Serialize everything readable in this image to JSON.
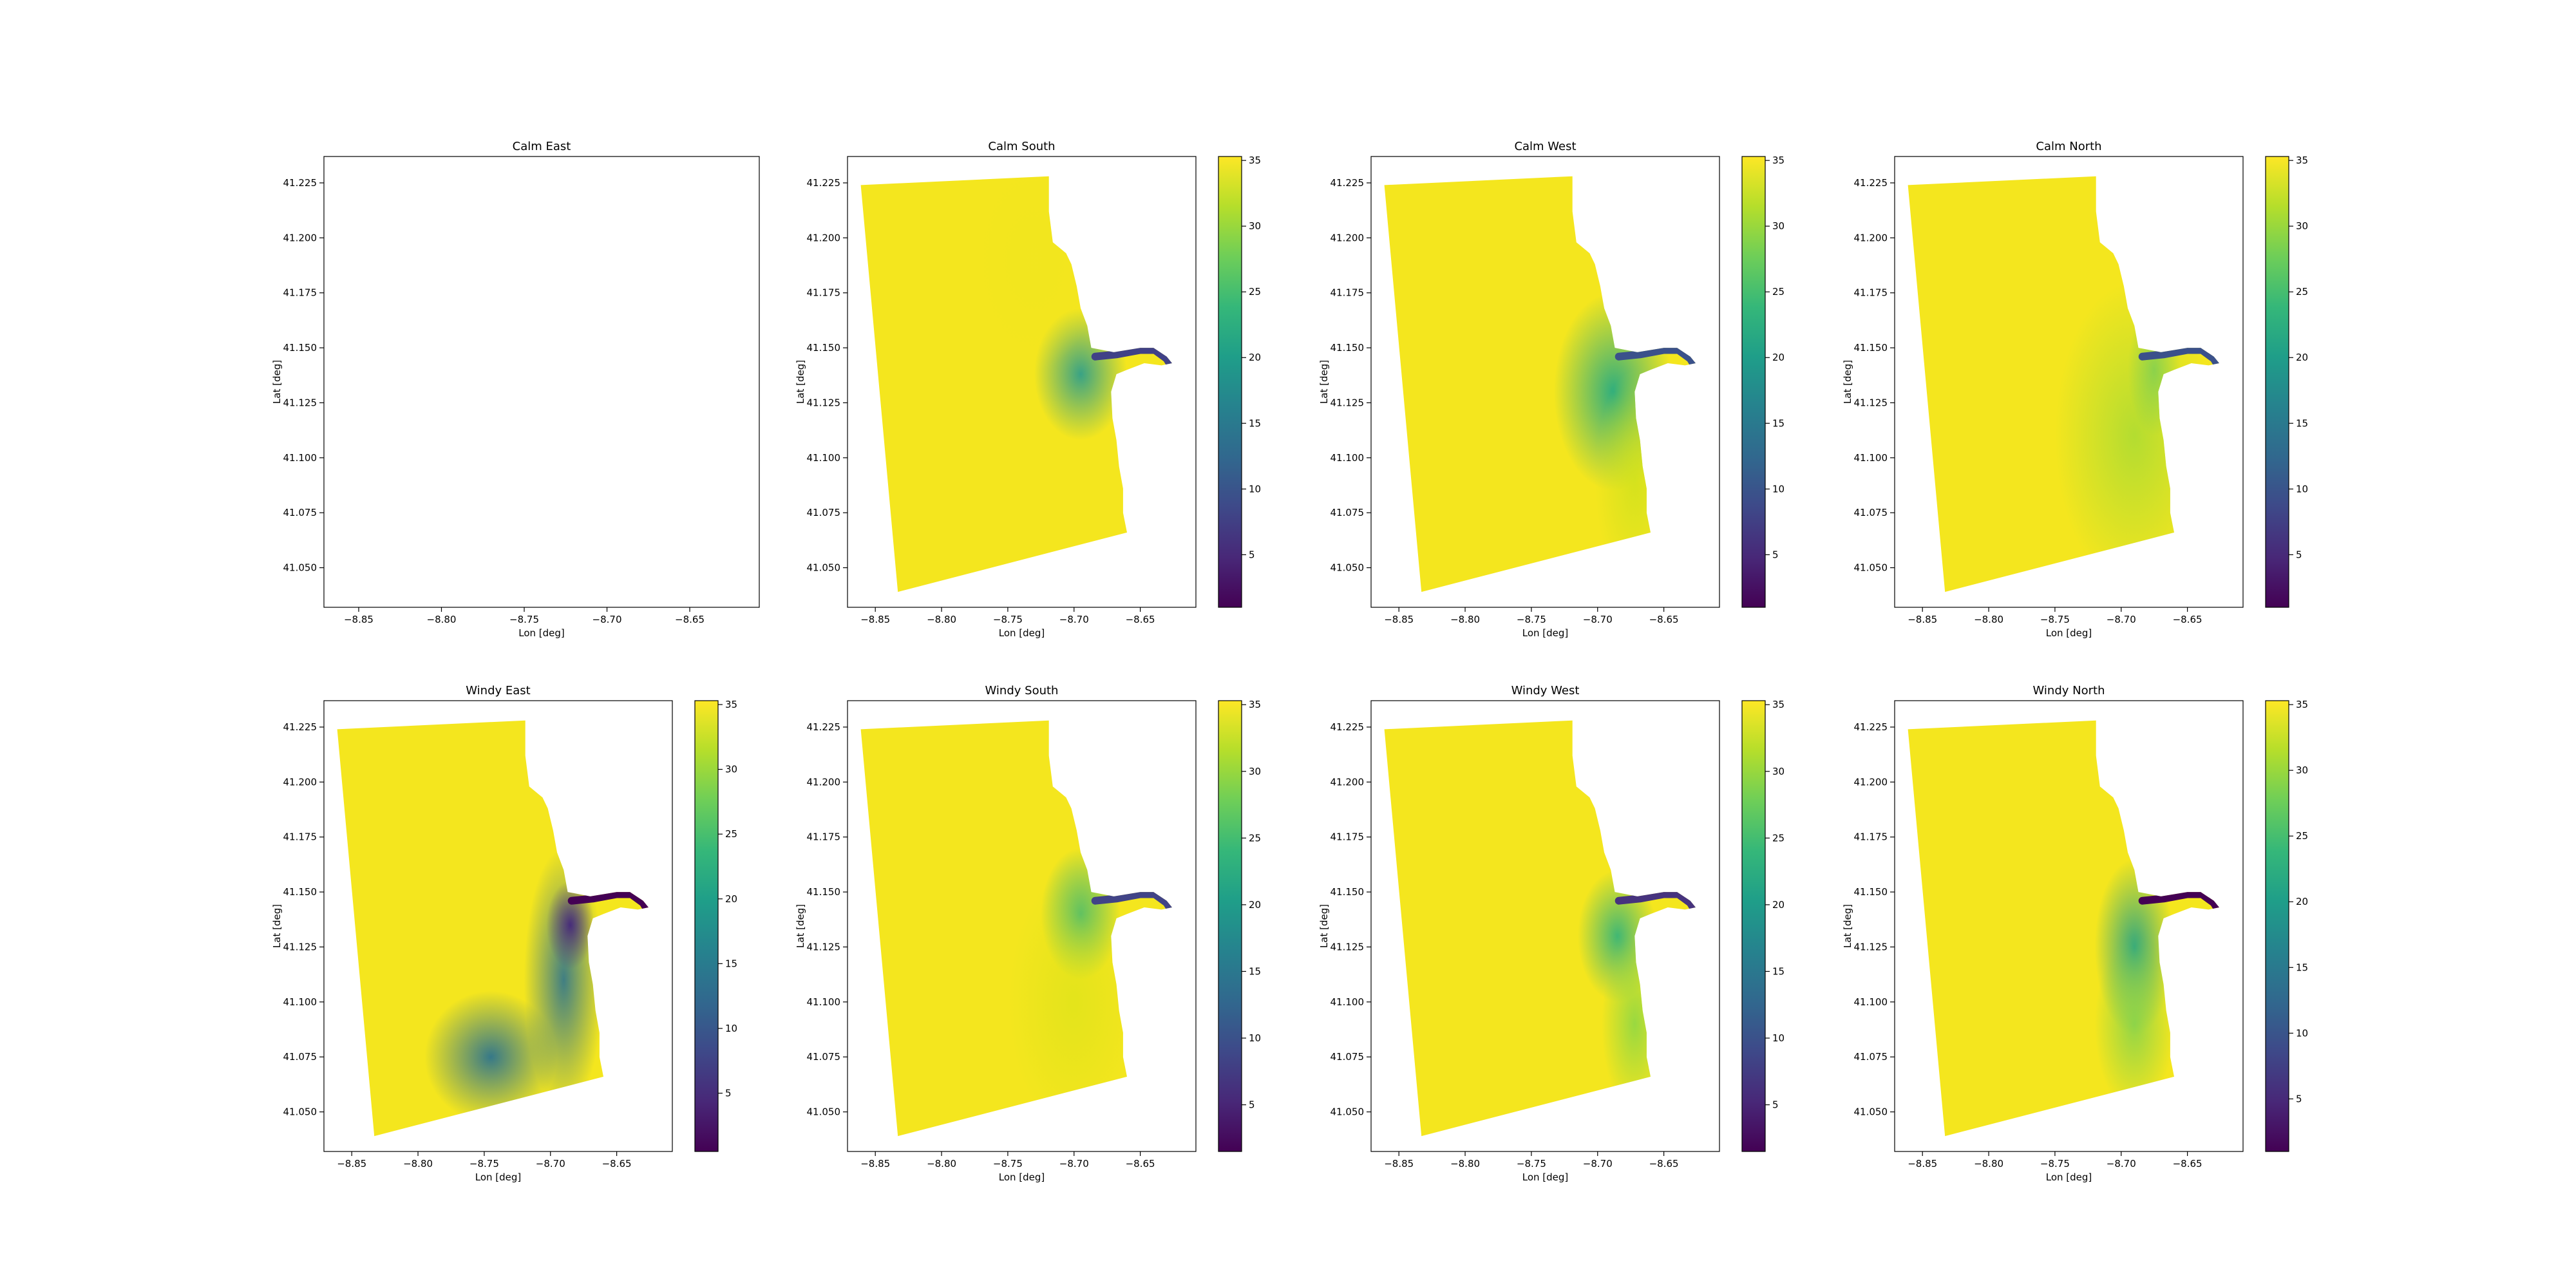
{
  "chart_data": [
    {
      "type": "heatmap",
      "title": "Calm East",
      "xlabel": "Lon [deg]",
      "ylabel": "Lat [deg]",
      "xlim": [
        -8.871,
        -8.608
      ],
      "ylim": [
        41.032,
        41.237
      ],
      "xticks": [
        "−8.85",
        "−8.80",
        "−8.75",
        "−8.70",
        "−8.65"
      ],
      "xtick_values": [
        -8.85,
        -8.8,
        -8.75,
        -8.7,
        -8.65
      ],
      "yticks": [
        "41.050",
        "41.075",
        "41.100",
        "41.125",
        "41.150",
        "41.175",
        "41.200",
        "41.225"
      ],
      "ytick_values": [
        41.05,
        41.075,
        41.1,
        41.125,
        41.15,
        41.175,
        41.2,
        41.225
      ],
      "colorbar": null,
      "field": "empty",
      "field_colors": {
        "offshore": "#f4e61e",
        "nearshore": "#f4e61e",
        "plume": "#f4e61e",
        "river": "#f4e61e"
      }
    },
    {
      "type": "heatmap",
      "title": "Calm South",
      "xlabel": "Lon [deg]",
      "ylabel": "Lat [deg]",
      "xlim": [
        -8.871,
        -8.608
      ],
      "ylim": [
        41.032,
        41.237
      ],
      "xticks": [
        "−8.85",
        "−8.80",
        "−8.75",
        "−8.70",
        "−8.65"
      ],
      "xtick_values": [
        -8.85,
        -8.8,
        -8.75,
        -8.7,
        -8.65
      ],
      "yticks": [
        "41.050",
        "41.075",
        "41.100",
        "41.125",
        "41.150",
        "41.175",
        "41.200",
        "41.225"
      ],
      "ytick_values": [
        41.05,
        41.075,
        41.1,
        41.125,
        41.15,
        41.175,
        41.2,
        41.225
      ],
      "colorbar": {
        "ticks": [
          "5",
          "10",
          "15",
          "20",
          "25",
          "30",
          "35"
        ],
        "tick_values": [
          5,
          10,
          15,
          20,
          25,
          30,
          35
        ],
        "range": [
          1,
          35.3
        ]
      },
      "field": "calm-south",
      "field_colors": {
        "offshore": "#f4e61e",
        "nearshore": "#f0e61f",
        "plume": "#2f9f8a",
        "river": "#404187"
      }
    },
    {
      "type": "heatmap",
      "title": "Calm West",
      "xlabel": "Lon [deg]",
      "ylabel": "Lat [deg]",
      "xlim": [
        -8.871,
        -8.608
      ],
      "ylim": [
        41.032,
        41.237
      ],
      "xticks": [
        "−8.85",
        "−8.80",
        "−8.75",
        "−8.70",
        "−8.65"
      ],
      "xtick_values": [
        -8.85,
        -8.8,
        -8.75,
        -8.7,
        -8.65
      ],
      "yticks": [
        "41.050",
        "41.075",
        "41.100",
        "41.125",
        "41.150",
        "41.175",
        "41.200",
        "41.225"
      ],
      "ytick_values": [
        41.05,
        41.075,
        41.1,
        41.125,
        41.15,
        41.175,
        41.2,
        41.225
      ],
      "colorbar": {
        "ticks": [
          "5",
          "10",
          "15",
          "20",
          "25",
          "30",
          "35"
        ],
        "tick_values": [
          5,
          10,
          15,
          20,
          25,
          30,
          35
        ],
        "range": [
          1,
          35.3
        ]
      },
      "field": "calm-west",
      "field_colors": {
        "offshore": "#f4e61e",
        "nearshore": "#cde11d",
        "plume": "#25ab82",
        "river": "#3b518b"
      }
    },
    {
      "type": "heatmap",
      "title": "Calm North",
      "xlabel": "Lon [deg]",
      "ylabel": "Lat [deg]",
      "xlim": [
        -8.871,
        -8.608
      ],
      "ylim": [
        41.032,
        41.237
      ],
      "xticks": [
        "−8.85",
        "−8.80",
        "−8.75",
        "−8.70",
        "−8.65"
      ],
      "xtick_values": [
        -8.85,
        -8.8,
        -8.75,
        -8.7,
        -8.65
      ],
      "yticks": [
        "41.050",
        "41.075",
        "41.100",
        "41.125",
        "41.150",
        "41.175",
        "41.200",
        "41.225"
      ],
      "ytick_values": [
        41.05,
        41.075,
        41.1,
        41.125,
        41.15,
        41.175,
        41.2,
        41.225
      ],
      "colorbar": {
        "ticks": [
          "5",
          "10",
          "15",
          "20",
          "25",
          "30",
          "35"
        ],
        "tick_values": [
          5,
          10,
          15,
          20,
          25,
          30,
          35
        ],
        "range": [
          1,
          35.3
        ]
      },
      "field": "calm-north",
      "field_colors": {
        "offshore": "#f4e61e",
        "nearshore": "#a8db34",
        "plume": "#5cc863",
        "river": "#3b518b"
      }
    },
    {
      "type": "heatmap",
      "title": "Windy East",
      "xlabel": "Lon [deg]",
      "ylabel": "Lat [deg]",
      "xlim": [
        -8.871,
        -8.608
      ],
      "ylim": [
        41.032,
        41.237
      ],
      "xticks": [
        "−8.85",
        "−8.80",
        "−8.75",
        "−8.70",
        "−8.65"
      ],
      "xtick_values": [
        -8.85,
        -8.8,
        -8.75,
        -8.7,
        -8.65
      ],
      "yticks": [
        "41.050",
        "41.075",
        "41.100",
        "41.125",
        "41.150",
        "41.175",
        "41.200",
        "41.225"
      ],
      "ytick_values": [
        41.05,
        41.075,
        41.1,
        41.125,
        41.15,
        41.175,
        41.2,
        41.225
      ],
      "colorbar": {
        "ticks": [
          "5",
          "10",
          "15",
          "20",
          "25",
          "30",
          "35"
        ],
        "tick_values": [
          5,
          10,
          15,
          20,
          25,
          30,
          35
        ],
        "range": [
          0.5,
          35.3
        ]
      },
      "field": "windy-east",
      "field_colors": {
        "offshore": "#f4e61e",
        "nearshore": "#2c738e",
        "plume": "#472c7a",
        "river": "#440154"
      }
    },
    {
      "type": "heatmap",
      "title": "Windy South",
      "xlabel": "Lon [deg]",
      "ylabel": "Lat [deg]",
      "xlim": [
        -8.871,
        -8.608
      ],
      "ylim": [
        41.032,
        41.237
      ],
      "xticks": [
        "−8.85",
        "−8.80",
        "−8.75",
        "−8.70",
        "−8.65"
      ],
      "xtick_values": [
        -8.85,
        -8.8,
        -8.75,
        -8.7,
        -8.65
      ],
      "yticks": [
        "41.050",
        "41.075",
        "41.100",
        "41.125",
        "41.150",
        "41.175",
        "41.200",
        "41.225"
      ],
      "ytick_values": [
        41.05,
        41.075,
        41.1,
        41.125,
        41.15,
        41.175,
        41.2,
        41.225
      ],
      "colorbar": {
        "ticks": [
          "5",
          "10",
          "15",
          "20",
          "25",
          "30",
          "35"
        ],
        "tick_values": [
          5,
          10,
          15,
          20,
          25,
          30,
          35
        ],
        "range": [
          1.5,
          35.3
        ]
      },
      "field": "windy-south",
      "field_colors": {
        "offshore": "#f4e61e",
        "nearshore": "#d8e219",
        "plume": "#31b57b",
        "river": "#414487"
      }
    },
    {
      "type": "heatmap",
      "title": "Windy West",
      "xlabel": "Lon [deg]",
      "ylabel": "Lat [deg]",
      "xlim": [
        -8.871,
        -8.608
      ],
      "ylim": [
        41.032,
        41.237
      ],
      "xticks": [
        "−8.85",
        "−8.80",
        "−8.75",
        "−8.70",
        "−8.65"
      ],
      "xtick_values": [
        -8.85,
        -8.8,
        -8.75,
        -8.7,
        -8.65
      ],
      "yticks": [
        "41.050",
        "41.075",
        "41.100",
        "41.125",
        "41.150",
        "41.175",
        "41.200",
        "41.225"
      ],
      "ytick_values": [
        41.05,
        41.075,
        41.1,
        41.125,
        41.15,
        41.175,
        41.2,
        41.225
      ],
      "colorbar": {
        "ticks": [
          "5",
          "10",
          "15",
          "20",
          "25",
          "30",
          "35"
        ],
        "tick_values": [
          5,
          10,
          15,
          20,
          25,
          30,
          35
        ],
        "range": [
          1.5,
          35.3
        ]
      },
      "field": "windy-west",
      "field_colors": {
        "offshore": "#f4e61e",
        "nearshore": "#8fd744",
        "plume": "#2db27d",
        "river": "#46337e"
      }
    },
    {
      "type": "heatmap",
      "title": "Windy North",
      "xlabel": "Lon [deg]",
      "ylabel": "Lat [deg]",
      "xlim": [
        -8.871,
        -8.608
      ],
      "ylim": [
        41.032,
        41.237
      ],
      "xticks": [
        "−8.85",
        "−8.80",
        "−8.75",
        "−8.70",
        "−8.65"
      ],
      "xtick_values": [
        -8.85,
        -8.8,
        -8.75,
        -8.7,
        -8.65
      ],
      "yticks": [
        "41.050",
        "41.075",
        "41.100",
        "41.125",
        "41.150",
        "41.175",
        "41.200",
        "41.225"
      ],
      "ytick_values": [
        41.05,
        41.075,
        41.1,
        41.125,
        41.15,
        41.175,
        41.2,
        41.225
      ],
      "colorbar": {
        "ticks": [
          "5",
          "10",
          "15",
          "20",
          "25",
          "30",
          "35"
        ],
        "tick_values": [
          5,
          10,
          15,
          20,
          25,
          30,
          35
        ],
        "range": [
          1,
          35.3
        ]
      },
      "field": "windy-north",
      "field_colors": {
        "offshore": "#f4e61e",
        "nearshore": "#7ad151",
        "plume": "#1fa187",
        "river": "#440154"
      }
    }
  ],
  "colormap": [
    "#440154",
    "#482878",
    "#3e4989",
    "#31688e",
    "#26828e",
    "#1f9e89",
    "#35b779",
    "#6ece58",
    "#b5de2b",
    "#fde725"
  ]
}
